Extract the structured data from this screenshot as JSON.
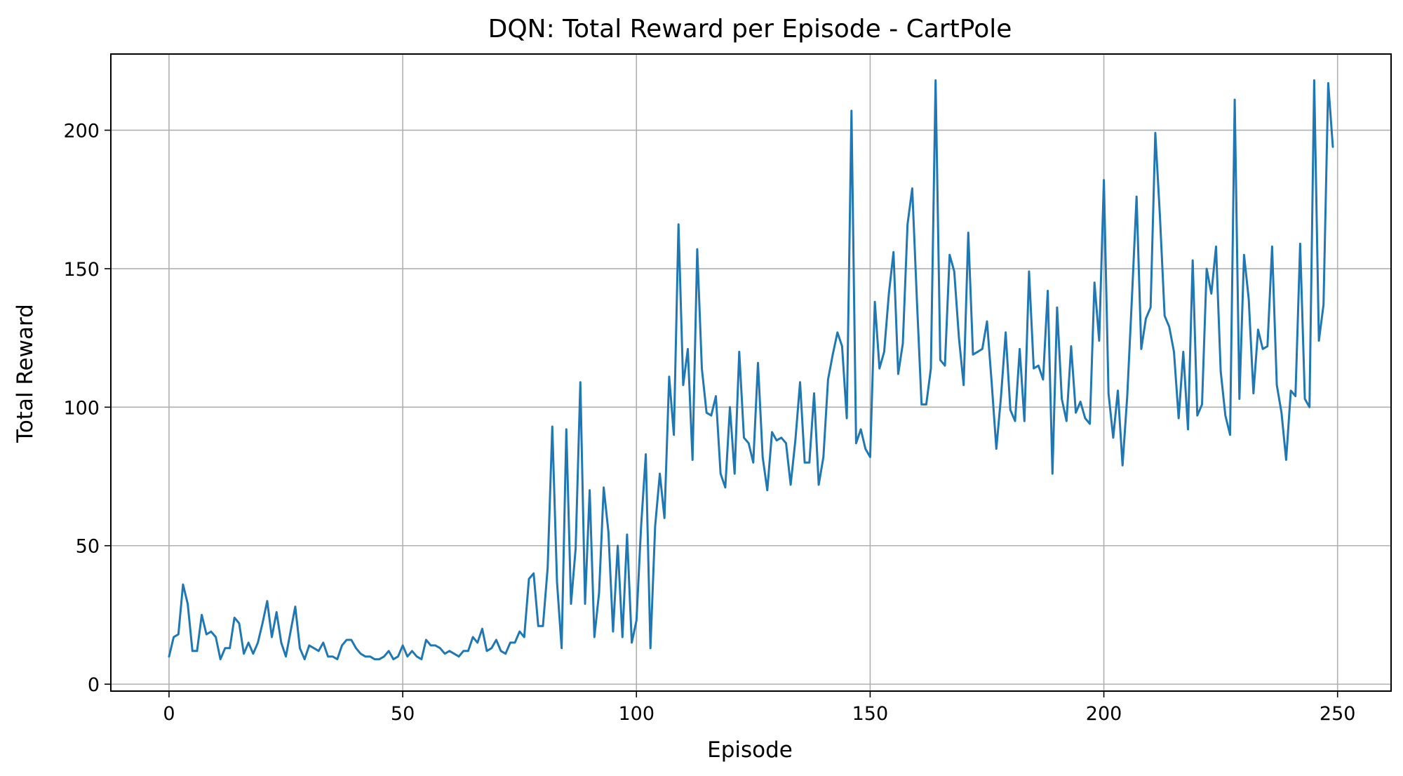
{
  "chart_data": {
    "type": "line",
    "title": "DQN: Total Reward per Episode - CartPole",
    "xlabel": "Episode",
    "ylabel": "Total Reward",
    "xlim": [
      -12.45,
      261.45
    ],
    "ylim": [
      -2.5,
      227.5
    ],
    "xticks": [
      0,
      50,
      100,
      150,
      200,
      250
    ],
    "yticks": [
      0,
      50,
      100,
      150,
      200
    ],
    "grid": true,
    "series": [
      {
        "color": "#1f77b4",
        "x_start": 0,
        "values": [
          10,
          17,
          18,
          36,
          29,
          12,
          12,
          25,
          18,
          19,
          17,
          9,
          13,
          13,
          24,
          22,
          11,
          15,
          11,
          15,
          22,
          30,
          17,
          26,
          15,
          10,
          19,
          28,
          13,
          9,
          14,
          13,
          12,
          15,
          10,
          10,
          9,
          14,
          16,
          16,
          13,
          11,
          10,
          10,
          9,
          9,
          10,
          12,
          9,
          10,
          14,
          10,
          12,
          10,
          9,
          16,
          14,
          14,
          13,
          11,
          12,
          11,
          10,
          12,
          12,
          17,
          15,
          20,
          12,
          13,
          16,
          12,
          11,
          15,
          15,
          19,
          17,
          38,
          40,
          21,
          21,
          42,
          93,
          37,
          13,
          92,
          29,
          49,
          109,
          29,
          70,
          17,
          33,
          71,
          55,
          19,
          50,
          17,
          54,
          15,
          23,
          57,
          83,
          13,
          57,
          76,
          60,
          111,
          90,
          166,
          108,
          121,
          81,
          157,
          114,
          98,
          97,
          104,
          76,
          71,
          100,
          76,
          120,
          89,
          87,
          80,
          116,
          82,
          70,
          91,
          88,
          89,
          87,
          72,
          88,
          109,
          80,
          80,
          105,
          72,
          82,
          110,
          119,
          127,
          122,
          96,
          207,
          87,
          92,
          85,
          82,
          138,
          114,
          120,
          141,
          156,
          112,
          123,
          166,
          179,
          139,
          101,
          101,
          114,
          218,
          117,
          115,
          155,
          149,
          125,
          108,
          163,
          119,
          120,
          121,
          131,
          109,
          85,
          104,
          127,
          99,
          95,
          121,
          95,
          149,
          114,
          115,
          110,
          142,
          76,
          136,
          103,
          95,
          122,
          98,
          102,
          96,
          94,
          145,
          124,
          182,
          105,
          89,
          106,
          79,
          104,
          139,
          176,
          121,
          132,
          136,
          199,
          169,
          133,
          129,
          120,
          96,
          120,
          92,
          153,
          97,
          101,
          150,
          141,
          158,
          113,
          97,
          90,
          211,
          103,
          155,
          139,
          105,
          128,
          121,
          122,
          158,
          108,
          98,
          81,
          106,
          104,
          159,
          103,
          100,
          218,
          124,
          137,
          217,
          194
        ]
      }
    ]
  }
}
